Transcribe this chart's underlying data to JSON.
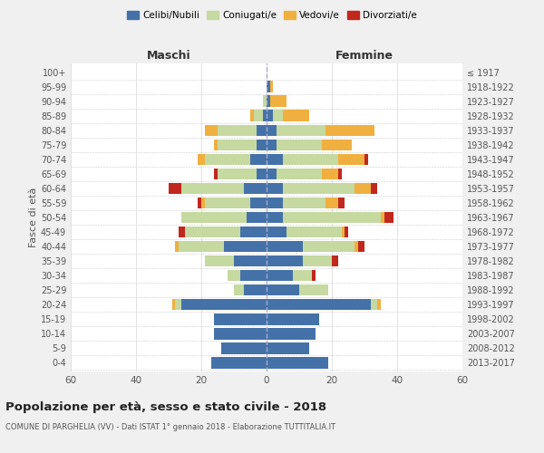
{
  "age_groups": [
    "0-4",
    "5-9",
    "10-14",
    "15-19",
    "20-24",
    "25-29",
    "30-34",
    "35-39",
    "40-44",
    "45-49",
    "50-54",
    "55-59",
    "60-64",
    "65-69",
    "70-74",
    "75-79",
    "80-84",
    "85-89",
    "90-94",
    "95-99",
    "100+"
  ],
  "birth_years": [
    "2013-2017",
    "2008-2012",
    "2003-2007",
    "1998-2002",
    "1993-1997",
    "1988-1992",
    "1983-1987",
    "1978-1982",
    "1973-1977",
    "1968-1972",
    "1963-1967",
    "1958-1962",
    "1953-1957",
    "1948-1952",
    "1943-1947",
    "1938-1942",
    "1933-1937",
    "1928-1932",
    "1923-1927",
    "1918-1922",
    "≤ 1917"
  ],
  "colors": {
    "celibe": "#4472a8",
    "coniugato": "#c5d9a0",
    "vedovo": "#f0b040",
    "divorziato": "#c0281e"
  },
  "maschi": {
    "celibe": [
      17,
      14,
      16,
      16,
      26,
      7,
      8,
      10,
      13,
      8,
      6,
      5,
      7,
      3,
      5,
      3,
      3,
      1,
      0,
      0,
      0
    ],
    "coniugato": [
      0,
      0,
      0,
      0,
      2,
      3,
      4,
      9,
      14,
      17,
      20,
      14,
      19,
      12,
      14,
      12,
      12,
      3,
      1,
      0,
      0
    ],
    "vedovo": [
      0,
      0,
      0,
      0,
      1,
      0,
      0,
      0,
      1,
      0,
      0,
      1,
      0,
      0,
      2,
      1,
      4,
      1,
      0,
      0,
      0
    ],
    "divorziato": [
      0,
      0,
      0,
      0,
      0,
      0,
      0,
      0,
      0,
      2,
      0,
      1,
      4,
      1,
      0,
      0,
      0,
      0,
      0,
      0,
      0
    ]
  },
  "femmine": {
    "celibe": [
      19,
      13,
      15,
      16,
      32,
      10,
      8,
      11,
      11,
      6,
      5,
      5,
      5,
      3,
      5,
      3,
      3,
      2,
      1,
      1,
      0
    ],
    "coniugato": [
      0,
      0,
      0,
      0,
      2,
      9,
      6,
      9,
      16,
      17,
      30,
      13,
      22,
      14,
      17,
      14,
      15,
      3,
      0,
      0,
      0
    ],
    "vedovo": [
      0,
      0,
      0,
      0,
      1,
      0,
      0,
      0,
      1,
      1,
      1,
      4,
      5,
      5,
      8,
      9,
      15,
      8,
      5,
      1,
      0
    ],
    "divorziato": [
      0,
      0,
      0,
      0,
      0,
      0,
      1,
      2,
      2,
      1,
      3,
      2,
      2,
      1,
      1,
      0,
      0,
      0,
      0,
      0,
      0
    ]
  },
  "xlim": 60,
  "title": "Popolazione per età, sesso e stato civile - 2018",
  "subtitle": "COMUNE DI PARGHELIA (VV) - Dati ISTAT 1° gennaio 2018 - Elaborazione TUTTITALIA.IT",
  "ylabel": "Fasce di età",
  "xlabel_left": "Maschi",
  "xlabel_right": "Femmine",
  "legend_labels": [
    "Celibi/Nubili",
    "Coniugati/e",
    "Vedovi/e",
    "Divorziati/e"
  ],
  "bg_color": "#f0f0f0",
  "plot_bg_color": "#ffffff"
}
